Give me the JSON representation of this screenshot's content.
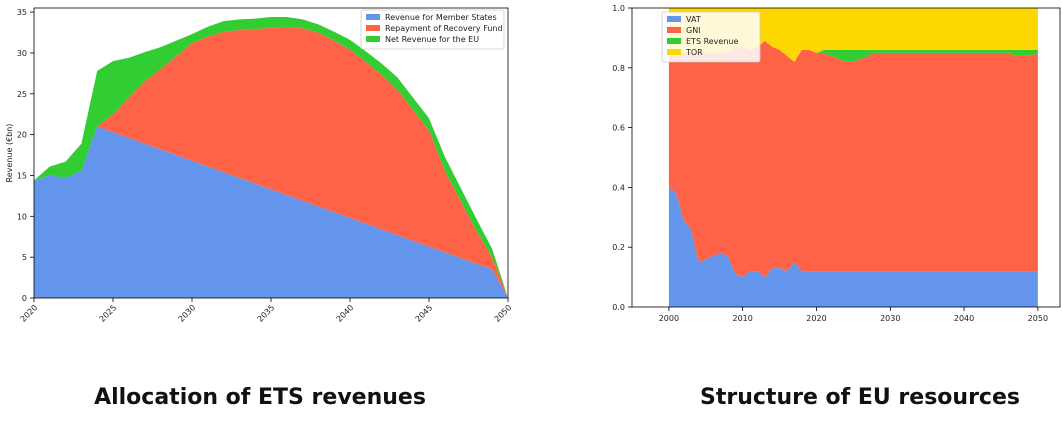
{
  "captions": {
    "left": "Allocation of ETS revenues",
    "right": "Structure of EU resources"
  },
  "chart_data": [
    {
      "type": "area",
      "stacked": true,
      "title": "",
      "xlabel": "",
      "ylabel": "Revenue (€bn)",
      "xlim": [
        2020,
        2050
      ],
      "ylim": [
        0,
        35.5
      ],
      "xticks": [
        2020,
        2025,
        2030,
        2035,
        2040,
        2045,
        2050
      ],
      "yticks": [
        0,
        5,
        10,
        15,
        20,
        25,
        30,
        35
      ],
      "legend_position": "top-right",
      "x": [
        2020,
        2021,
        2022,
        2023,
        2024,
        2025,
        2026,
        2027,
        2028,
        2029,
        2030,
        2031,
        2032,
        2033,
        2034,
        2035,
        2036,
        2037,
        2038,
        2039,
        2040,
        2041,
        2042,
        2043,
        2044,
        2045,
        2046,
        2047,
        2048,
        2049,
        2050
      ],
      "series": [
        {
          "name": "Revenue for Member States",
          "color": "#6495ED",
          "values": [
            14.4,
            15.0,
            14.7,
            15.6,
            21.0,
            20.3,
            19.6,
            18.9,
            18.2,
            17.5,
            16.8,
            16.1,
            15.4,
            14.7,
            14.0,
            13.3,
            12.6,
            11.9,
            11.2,
            10.5,
            9.8,
            9.1,
            8.4,
            7.7,
            7.0,
            6.3,
            5.6,
            4.9,
            4.2,
            3.5,
            0.0
          ]
        },
        {
          "name": "Repayment of Recovery Fund",
          "color": "#FF6347",
          "values": [
            0.0,
            0.0,
            0.0,
            0.0,
            0.0,
            2.2,
            4.9,
            7.6,
            9.8,
            12.1,
            14.4,
            15.9,
            17.2,
            18.1,
            18.9,
            19.8,
            20.6,
            21.1,
            21.3,
            21.0,
            20.6,
            19.8,
            18.9,
            17.8,
            16.0,
            14.2,
            10.0,
            7.0,
            4.0,
            1.5,
            0.0
          ]
        },
        {
          "name": "Net Revenue for the EU",
          "color": "#32CD32",
          "values": [
            0.0,
            1.1,
            2.0,
            3.3,
            6.8,
            6.5,
            4.9,
            3.6,
            2.7,
            1.9,
            1.1,
            1.2,
            1.3,
            1.3,
            1.3,
            1.3,
            1.2,
            1.1,
            1.0,
            1.1,
            1.2,
            1.3,
            1.4,
            1.5,
            1.5,
            1.5,
            1.7,
            1.6,
            1.5,
            1.0,
            0.0
          ]
        }
      ]
    },
    {
      "type": "area",
      "stacked": true,
      "title": "",
      "xlabel": "",
      "ylabel": "",
      "xlim": [
        1995,
        2053
      ],
      "ylim": [
        0,
        1.0
      ],
      "xticks": [
        2000,
        2010,
        2020,
        2030,
        2040,
        2050
      ],
      "yticks": [
        0.0,
        0.2,
        0.4,
        0.6,
        0.8,
        1.0
      ],
      "legend_position": "top-left",
      "x": [
        2000,
        2001,
        2002,
        2003,
        2004,
        2005,
        2006,
        2007,
        2008,
        2009,
        2010,
        2011,
        2012,
        2013,
        2014,
        2015,
        2016,
        2017,
        2018,
        2019,
        2020,
        2021,
        2022,
        2023,
        2024,
        2025,
        2026,
        2027,
        2028,
        2029,
        2030,
        2031,
        2032,
        2033,
        2034,
        2035,
        2036,
        2037,
        2038,
        2039,
        2040,
        2041,
        2042,
        2043,
        2044,
        2045,
        2046,
        2047,
        2048,
        2049,
        2050
      ],
      "series": [
        {
          "name": "VAT",
          "color": "#6495ED",
          "values": [
            0.4,
            0.38,
            0.29,
            0.26,
            0.15,
            0.16,
            0.17,
            0.18,
            0.17,
            0.11,
            0.1,
            0.12,
            0.12,
            0.1,
            0.13,
            0.13,
            0.12,
            0.15,
            0.12,
            0.12,
            0.12,
            0.12,
            0.12,
            0.12,
            0.12,
            0.12,
            0.12,
            0.12,
            0.12,
            0.12,
            0.12,
            0.12,
            0.12,
            0.12,
            0.12,
            0.12,
            0.12,
            0.12,
            0.12,
            0.12,
            0.12,
            0.12,
            0.12,
            0.12,
            0.12,
            0.12,
            0.12,
            0.12,
            0.12,
            0.12,
            0.12
          ]
        },
        {
          "name": "GNI",
          "color": "#FF6347",
          "values": [
            0.44,
            0.46,
            0.56,
            0.59,
            0.7,
            0.69,
            0.68,
            0.67,
            0.68,
            0.76,
            0.77,
            0.74,
            0.75,
            0.79,
            0.74,
            0.73,
            0.72,
            0.67,
            0.74,
            0.74,
            0.73,
            0.73,
            0.72,
            0.71,
            0.7,
            0.7,
            0.71,
            0.72,
            0.73,
            0.73,
            0.73,
            0.73,
            0.73,
            0.73,
            0.73,
            0.73,
            0.73,
            0.73,
            0.73,
            0.73,
            0.73,
            0.73,
            0.73,
            0.73,
            0.73,
            0.73,
            0.73,
            0.72,
            0.72,
            0.72,
            0.73
          ]
        },
        {
          "name": "ETS Revenue",
          "color": "#32CD32",
          "values": [
            0.0,
            0.0,
            0.0,
            0.0,
            0.0,
            0.0,
            0.0,
            0.0,
            0.0,
            0.0,
            0.0,
            0.0,
            0.0,
            0.0,
            0.0,
            0.0,
            0.0,
            0.0,
            0.0,
            0.0,
            0.0,
            0.01,
            0.02,
            0.03,
            0.04,
            0.04,
            0.03,
            0.02,
            0.01,
            0.01,
            0.01,
            0.01,
            0.01,
            0.01,
            0.01,
            0.01,
            0.01,
            0.01,
            0.01,
            0.01,
            0.01,
            0.01,
            0.01,
            0.01,
            0.01,
            0.01,
            0.01,
            0.02,
            0.02,
            0.02,
            0.01
          ]
        },
        {
          "name": "TOR",
          "color": "#FFD700",
          "values": [
            0.16,
            0.16,
            0.15,
            0.15,
            0.15,
            0.15,
            0.15,
            0.15,
            0.15,
            0.13,
            0.13,
            0.14,
            0.13,
            0.11,
            0.13,
            0.14,
            0.16,
            0.18,
            0.14,
            0.14,
            0.15,
            0.14,
            0.14,
            0.14,
            0.14,
            0.14,
            0.14,
            0.14,
            0.14,
            0.14,
            0.14,
            0.14,
            0.14,
            0.14,
            0.14,
            0.14,
            0.14,
            0.14,
            0.14,
            0.14,
            0.14,
            0.14,
            0.14,
            0.14,
            0.14,
            0.14,
            0.14,
            0.14,
            0.14,
            0.14,
            0.14
          ]
        }
      ]
    }
  ]
}
